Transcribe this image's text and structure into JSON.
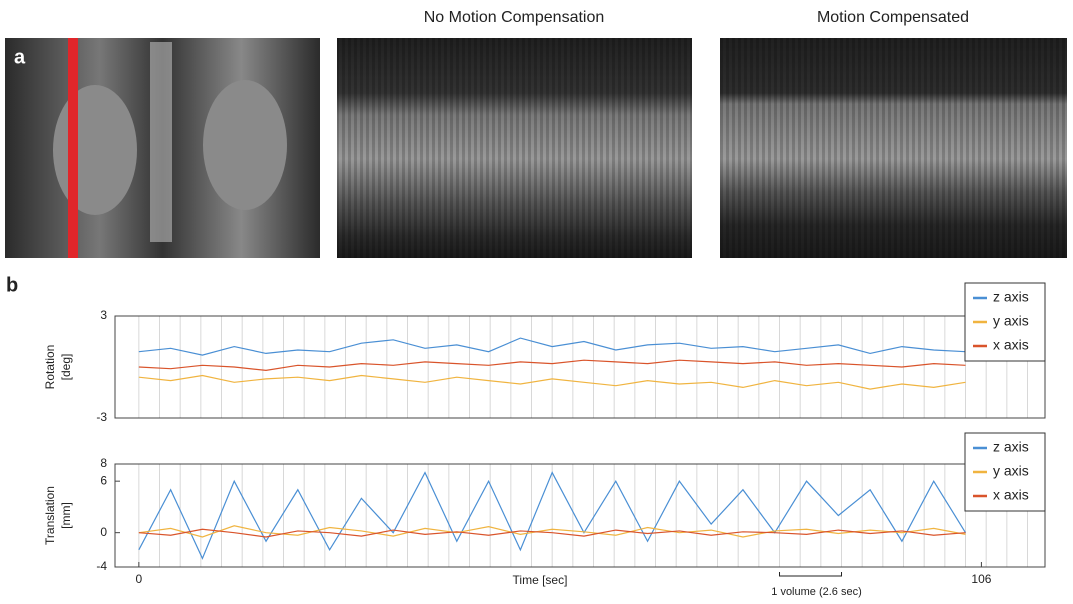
{
  "panels": {
    "a_label": "a",
    "b_label": "b",
    "titles": [
      "No Motion Compensation",
      "Motion Compensated"
    ]
  },
  "chart_data": [
    {
      "type": "line",
      "ylabel": [
        "Rotation",
        "[deg]"
      ],
      "x": [
        0,
        4,
        8,
        12,
        16,
        20,
        24,
        28,
        32,
        36,
        40,
        44,
        48,
        52,
        56,
        60,
        64,
        68,
        72,
        76,
        80,
        84,
        88,
        92,
        96,
        100,
        104
      ],
      "xlim": [
        -3,
        114
      ],
      "ylim": [
        -3,
        3
      ],
      "yticks": [
        -3,
        3
      ],
      "vgrid_step": 2.6,
      "series": [
        {
          "name": "z axis",
          "color": "#4a8fd4",
          "values": [
            0.9,
            1.1,
            0.7,
            1.2,
            0.8,
            1.0,
            0.9,
            1.4,
            1.6,
            1.1,
            1.3,
            0.9,
            1.7,
            1.2,
            1.5,
            1.0,
            1.3,
            1.4,
            1.1,
            1.2,
            0.9,
            1.1,
            1.3,
            0.8,
            1.2,
            1.0,
            0.9
          ]
        },
        {
          "name": "y axis",
          "color": "#f0b440",
          "values": [
            -0.6,
            -0.8,
            -0.5,
            -0.9,
            -0.7,
            -0.6,
            -0.8,
            -0.5,
            -0.7,
            -0.9,
            -0.6,
            -0.8,
            -1.0,
            -0.7,
            -0.9,
            -1.1,
            -0.8,
            -1.0,
            -0.9,
            -1.2,
            -0.8,
            -1.1,
            -0.9,
            -1.3,
            -1.0,
            -1.2,
            -0.9
          ]
        },
        {
          "name": "x axis",
          "color": "#d9542b",
          "values": [
            0.0,
            -0.1,
            0.1,
            0.0,
            -0.2,
            0.1,
            0.0,
            0.2,
            0.1,
            0.3,
            0.2,
            0.1,
            0.3,
            0.2,
            0.4,
            0.3,
            0.2,
            0.4,
            0.3,
            0.2,
            0.3,
            0.1,
            0.2,
            0.1,
            0.0,
            0.2,
            0.1
          ]
        }
      ]
    },
    {
      "type": "line",
      "ylabel": [
        "Translation",
        "[mm]"
      ],
      "xlabel": "Time [sec]",
      "x": [
        0,
        4,
        8,
        12,
        16,
        20,
        24,
        28,
        32,
        36,
        40,
        44,
        48,
        52,
        56,
        60,
        64,
        68,
        72,
        76,
        80,
        84,
        88,
        92,
        96,
        100,
        104
      ],
      "xlim": [
        -3,
        114
      ],
      "xticks": [
        0,
        106
      ],
      "ylim": [
        -4,
        8
      ],
      "yticks": [
        -4,
        0,
        6,
        8
      ],
      "vgrid_step": 2.6,
      "annotation": "1 volume (2.6 sec)",
      "series": [
        {
          "name": "z axis",
          "color": "#4a8fd4",
          "values": [
            -2,
            5,
            -3,
            6,
            -1,
            5,
            -2,
            4,
            0,
            7,
            -1,
            6,
            -2,
            7,
            0,
            6,
            -1,
            6,
            1,
            5,
            0,
            6,
            2,
            5,
            -1,
            6,
            0
          ]
        },
        {
          "name": "y axis",
          "color": "#f0b440",
          "values": [
            0,
            0.5,
            -0.5,
            0.8,
            0,
            -0.3,
            0.6,
            0.2,
            -0.4,
            0.5,
            0,
            0.7,
            -0.2,
            0.4,
            0.1,
            -0.3,
            0.6,
            0,
            0.3,
            -0.5,
            0.2,
            0.4,
            -0.1,
            0.3,
            0,
            0.5,
            -0.2
          ]
        },
        {
          "name": "x axis",
          "color": "#d9542b",
          "values": [
            0,
            -0.3,
            0.4,
            0,
            -0.5,
            0.2,
            0,
            -0.4,
            0.3,
            -0.2,
            0.1,
            -0.3,
            0.2,
            0,
            -0.4,
            0.3,
            -0.1,
            0.2,
            -0.3,
            0.1,
            0,
            -0.2,
            0.3,
            -0.1,
            0.2,
            -0.3,
            0
          ]
        }
      ]
    }
  ]
}
